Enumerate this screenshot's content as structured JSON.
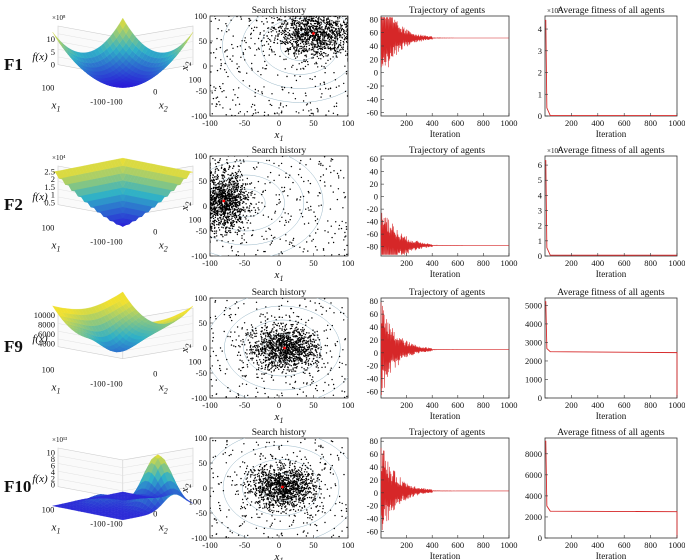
{
  "rows": [
    {
      "label": "F1",
      "surface": {
        "ylabel": "f(x)",
        "zticks": [
          "0",
          "5",
          "10"
        ],
        "zscale": "×10⁸",
        "xticks": [
          "100",
          "-100",
          "-100",
          "0",
          "100"
        ],
        "axis1": "x",
        "sub1": "1",
        "axis2": "x",
        "sub2": "2",
        "shape": "bowl"
      },
      "scatter": {
        "title": "Search history",
        "xticks": [
          "-100",
          "-50",
          "0",
          "50",
          "100"
        ],
        "yticks": [
          "100",
          "50",
          "0",
          "-50",
          "-100"
        ],
        "xlabel": "x",
        "xsub": "1",
        "ylabel": "x",
        "ysub": "2",
        "center": [
          50,
          65
        ],
        "spread": [
          30,
          25
        ],
        "minimum": [
          50,
          65
        ]
      },
      "trajectory": {
        "title": "Trajectory of agents",
        "xlabel": "Iteration",
        "xticks": [
          "200",
          "400",
          "600",
          "800",
          "1000"
        ],
        "yticks": [
          "80",
          "60",
          "40",
          "20",
          "0",
          "-20",
          "-40",
          "-60"
        ],
        "ylim": [
          -65,
          85
        ],
        "final": 52
      },
      "fitness": {
        "title": "Average fitness of all agents",
        "xlabel": "Iteration",
        "xticks": [
          "200",
          "400",
          "600",
          "800",
          "1000"
        ],
        "yticks": [
          "4",
          "3",
          "2",
          "1",
          "0"
        ],
        "ylim": [
          0,
          4.6
        ],
        "scale": "×10¹³",
        "spike": 4.4,
        "plateau": 0.02,
        "tail_drop": false
      }
    },
    {
      "label": "F2",
      "surface": {
        "ylabel": "f(x)",
        "zticks": [
          "0.5",
          "1",
          "1.5",
          "2",
          "2.5"
        ],
        "zscale": "×10⁴",
        "xticks": [
          "100",
          "-100",
          "-100",
          "0",
          "100"
        ],
        "axis1": "x",
        "sub1": "1",
        "axis2": "x",
        "sub2": "2",
        "shape": "cone"
      },
      "scatter": {
        "title": "Search history",
        "xticks": [
          "-100",
          "-50",
          "0",
          "50",
          "100"
        ],
        "yticks": [
          "100",
          "50",
          "0",
          "-50",
          "-100"
        ],
        "xlabel": "x",
        "xsub": "1",
        "ylabel": "x",
        "ysub": "2",
        "center": [
          -80,
          10
        ],
        "spread": [
          18,
          30
        ],
        "minimum": [
          -80,
          10
        ]
      },
      "trajectory": {
        "title": "Trajectory of agents",
        "xlabel": "Iteration",
        "xticks": [
          "200",
          "400",
          "600",
          "800",
          "1000"
        ],
        "yticks": [
          "60",
          "40",
          "20",
          "0",
          "-20",
          "-40",
          "-60",
          "-80"
        ],
        "ylim": [
          -95,
          65
        ],
        "final": -78
      },
      "fitness": {
        "title": "Average fitness of all agents",
        "xlabel": "Iteration",
        "xticks": [
          "200",
          "400",
          "600",
          "800",
          "1000"
        ],
        "yticks": [
          "6",
          "5",
          "4",
          "3",
          "2",
          "1",
          "0"
        ],
        "ylim": [
          0,
          6.6
        ],
        "scale": "×10⁴",
        "spike": 6.3,
        "plateau": 0.05,
        "tail_drop": false
      }
    },
    {
      "label": "F9",
      "surface": {
        "ylabel": "f(x)",
        "zticks": [
          "4000",
          "6000",
          "8000",
          "10000"
        ],
        "zscale": "",
        "xticks": [
          "100",
          "-100",
          "-100",
          "0",
          "100"
        ],
        "axis1": "x",
        "sub1": "1",
        "axis2": "x",
        "sub2": "2",
        "shape": "saddle"
      },
      "scatter": {
        "title": "Search history",
        "xticks": [
          "-100",
          "-50",
          "0",
          "50",
          "100"
        ],
        "yticks": [
          "100",
          "50",
          "0",
          "-50",
          "-100"
        ],
        "xlabel": "x",
        "xsub": "1",
        "ylabel": "x",
        "ysub": "2",
        "center": [
          8,
          0
        ],
        "spread": [
          25,
          22
        ],
        "minimum": [
          8,
          0
        ]
      },
      "trajectory": {
        "title": "Trajectory of agents",
        "xlabel": "Iteration",
        "xticks": [
          "200",
          "400",
          "600",
          "800",
          "1000"
        ],
        "yticks": [
          "80",
          "60",
          "40",
          "20",
          "0",
          "-20",
          "-40",
          "-60"
        ],
        "ylim": [
          -70,
          85
        ],
        "final": 5
      },
      "fitness": {
        "title": "Average fitness of all agents",
        "xlabel": "Iteration",
        "xticks": [
          "200",
          "400",
          "600",
          "800",
          "1000"
        ],
        "yticks": [
          "5000",
          "4000",
          "3000",
          "2000",
          "1000",
          "0"
        ],
        "ylim": [
          0,
          5400
        ],
        "scale": "",
        "spike": 5200,
        "plateau": 2450,
        "tail_drop": true
      }
    },
    {
      "label": "F10",
      "surface": {
        "ylabel": "f(x)",
        "zticks": [
          "0",
          "2",
          "4",
          "6",
          "8",
          "10"
        ],
        "zscale": "×10¹³",
        "xticks": [
          "100",
          "-100",
          "-100",
          "0",
          "100"
        ],
        "axis1": "x",
        "sub1": "1",
        "axis2": "x",
        "sub2": "2",
        "shape": "peaks"
      },
      "scatter": {
        "title": "Search history",
        "xticks": [
          "-100",
          "-50",
          "0",
          "50",
          "100"
        ],
        "yticks": [
          "100",
          "50",
          "0",
          "-50",
          "-100"
        ],
        "xlabel": "x",
        "xsub": "1",
        "ylabel": "x",
        "ysub": "2",
        "center": [
          5,
          2
        ],
        "spread": [
          25,
          22
        ],
        "minimum": [
          5,
          2
        ]
      },
      "trajectory": {
        "title": "Trajectory of agents",
        "xlabel": "Iteration",
        "xticks": [
          "200",
          "400",
          "600",
          "800",
          "1000"
        ],
        "yticks": [
          "80",
          "60",
          "40",
          "20",
          "0",
          "-20",
          "-40",
          "-60"
        ],
        "ylim": [
          -70,
          85
        ],
        "final": 3
      },
      "fitness": {
        "title": "Average fitness of all agents",
        "xlabel": "Iteration",
        "xticks": [
          "200",
          "400",
          "600",
          "800",
          "1000"
        ],
        "yticks": [
          "8000",
          "6000",
          "4000",
          "2000",
          "0"
        ],
        "ylim": [
          0,
          9500
        ],
        "scale": "",
        "spike": 9200,
        "plateau": 2500,
        "tail_drop": true
      }
    }
  ],
  "chart_data": [
    {
      "type": "scatter",
      "title": "Search history (F1)",
      "xlabel": "x1",
      "ylabel": "x2",
      "xlim": [
        -100,
        100
      ],
      "ylim": [
        -100,
        100
      ],
      "cluster_center": [
        50,
        65
      ]
    },
    {
      "type": "line",
      "title": "Trajectory of agents (F1)",
      "xlabel": "Iteration",
      "xlim": [
        0,
        1000
      ],
      "ylim": [
        -65,
        85
      ],
      "converged_value": 52
    },
    {
      "type": "line",
      "title": "Average fitness of all agents (F1)",
      "xlabel": "Iteration",
      "xlim": [
        0,
        1000
      ],
      "ylim": [
        0,
        4.6
      ],
      "scale": "1e13",
      "initial_value": 4.4
    },
    {
      "type": "scatter",
      "title": "Search history (F2)",
      "xlabel": "x1",
      "ylabel": "x2",
      "xlim": [
        -100,
        100
      ],
      "ylim": [
        -100,
        100
      ],
      "cluster_center": [
        -80,
        10
      ]
    },
    {
      "type": "line",
      "title": "Trajectory of agents (F2)",
      "xlabel": "Iteration",
      "xlim": [
        0,
        1000
      ],
      "ylim": [
        -95,
        65
      ],
      "converged_value": -78
    },
    {
      "type": "line",
      "title": "Average fitness of all agents (F2)",
      "xlabel": "Iteration",
      "xlim": [
        0,
        1000
      ],
      "ylim": [
        0,
        6.6
      ],
      "scale": "1e4",
      "initial_value": 6.3
    },
    {
      "type": "scatter",
      "title": "Search history (F9)",
      "xlabel": "x1",
      "ylabel": "x2",
      "xlim": [
        -100,
        100
      ],
      "ylim": [
        -100,
        100
      ],
      "cluster_center": [
        8,
        0
      ]
    },
    {
      "type": "line",
      "title": "Trajectory of agents (F9)",
      "xlabel": "Iteration",
      "xlim": [
        0,
        1000
      ],
      "ylim": [
        -70,
        85
      ],
      "converged_value": 5
    },
    {
      "type": "line",
      "title": "Average fitness of all agents (F9)",
      "xlabel": "Iteration",
      "xlim": [
        0,
        1000
      ],
      "ylim": [
        0,
        5400
      ],
      "initial_value": 5200,
      "plateau": 2450
    },
    {
      "type": "scatter",
      "title": "Search history (F10)",
      "xlabel": "x1",
      "ylabel": "x2",
      "xlim": [
        -100,
        100
      ],
      "ylim": [
        -100,
        100
      ],
      "cluster_center": [
        5,
        2
      ]
    },
    {
      "type": "line",
      "title": "Trajectory of agents (F10)",
      "xlabel": "Iteration",
      "xlim": [
        0,
        1000
      ],
      "ylim": [
        -70,
        85
      ],
      "converged_value": 3
    },
    {
      "type": "line",
      "title": "Average fitness of all agents (F10)",
      "xlabel": "Iteration",
      "xlim": [
        0,
        1000
      ],
      "ylim": [
        0,
        9500
      ],
      "initial_value": 9200,
      "plateau": 2500
    }
  ],
  "colors": {
    "line": "#d62728",
    "dots": "#000000",
    "minimum": "#ff0000",
    "axis": "#333333",
    "contour": "#9ab8c8",
    "surf_low": "#2a1bd8",
    "surf_mid": "#2fb0c8",
    "surf_high": "#f0e030"
  }
}
